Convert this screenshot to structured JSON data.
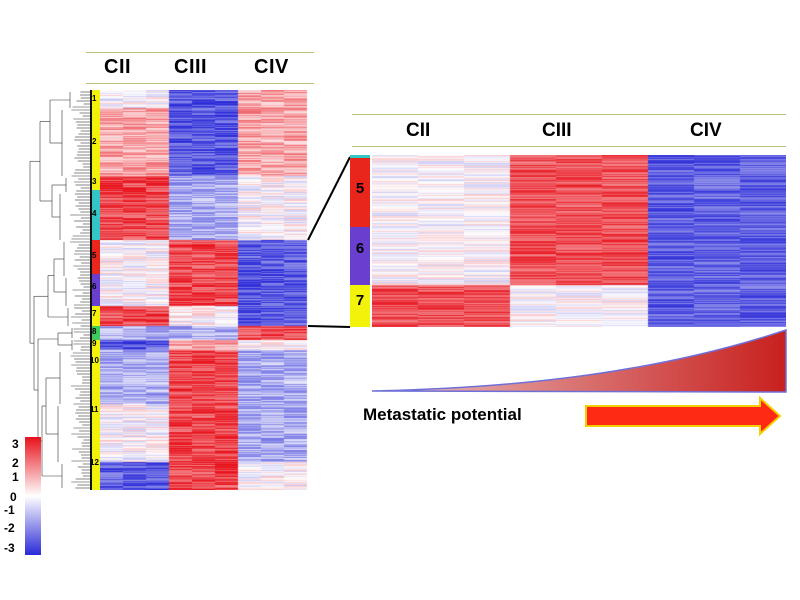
{
  "heatmap": {
    "columns": [
      "CII",
      "CIII",
      "CIV"
    ],
    "clusters": [
      {
        "id": "1",
        "label": "1",
        "color": "#f2f20a",
        "pattern": [
          0,
          -2,
          1
        ]
      },
      {
        "id": "2",
        "label": "2",
        "color": "#f2f20a",
        "pattern": [
          1,
          -2,
          1
        ]
      },
      {
        "id": "3",
        "label": "3",
        "color": "#f2f20a",
        "pattern": [
          2,
          -1,
          0
        ]
      },
      {
        "id": "4",
        "label": "4",
        "color": "#33c6c6",
        "pattern": [
          2,
          -1,
          0
        ]
      },
      {
        "id": "5",
        "label": "5",
        "color": "#e8261c",
        "pattern": [
          0,
          2,
          -2
        ]
      },
      {
        "id": "6",
        "label": "6",
        "color": "#6a3fd0",
        "pattern": [
          0,
          2,
          -2
        ]
      },
      {
        "id": "7",
        "label": "7",
        "color": "#f2f20a",
        "pattern": [
          2,
          0,
          -2
        ]
      },
      {
        "id": "8",
        "label": "8",
        "color": "#3ecb5c",
        "pattern": [
          -1,
          -1,
          2
        ]
      },
      {
        "id": "9",
        "label": "9",
        "color": "#f2f20a",
        "pattern": [
          -2,
          1,
          0
        ]
      },
      {
        "id": "10",
        "label": "10",
        "color": "#f2f20a",
        "pattern": [
          -1,
          2,
          -1
        ]
      },
      {
        "id": "11",
        "label": "11",
        "color": "#f2f20a",
        "pattern": [
          0,
          2,
          -1
        ]
      },
      {
        "id": "12",
        "label": "12",
        "color": "#f2f20a",
        "pattern": [
          -2,
          2,
          0
        ]
      }
    ]
  },
  "zoom": {
    "columns": [
      "CII",
      "CIII",
      "CIV"
    ],
    "clusters": [
      {
        "label": "5",
        "color": "#e8261c"
      },
      {
        "label": "6",
        "color": "#6a3fd0"
      },
      {
        "label": "7",
        "color": "#f2f20a"
      }
    ]
  },
  "colorbar": {
    "ticks": [
      "3",
      "2",
      "1",
      "0",
      "-1",
      "-2",
      "-3"
    ],
    "min": -3,
    "max": 3,
    "colors": {
      "high": "#e8111b",
      "mid": "#ffffff",
      "low": "#2a2ad8"
    }
  },
  "metastatic": {
    "label": "Metastatic potential",
    "arrow_color": "#ff2a14",
    "arrow_outline": "#f4d000",
    "wedge_color": "#c8201e"
  }
}
